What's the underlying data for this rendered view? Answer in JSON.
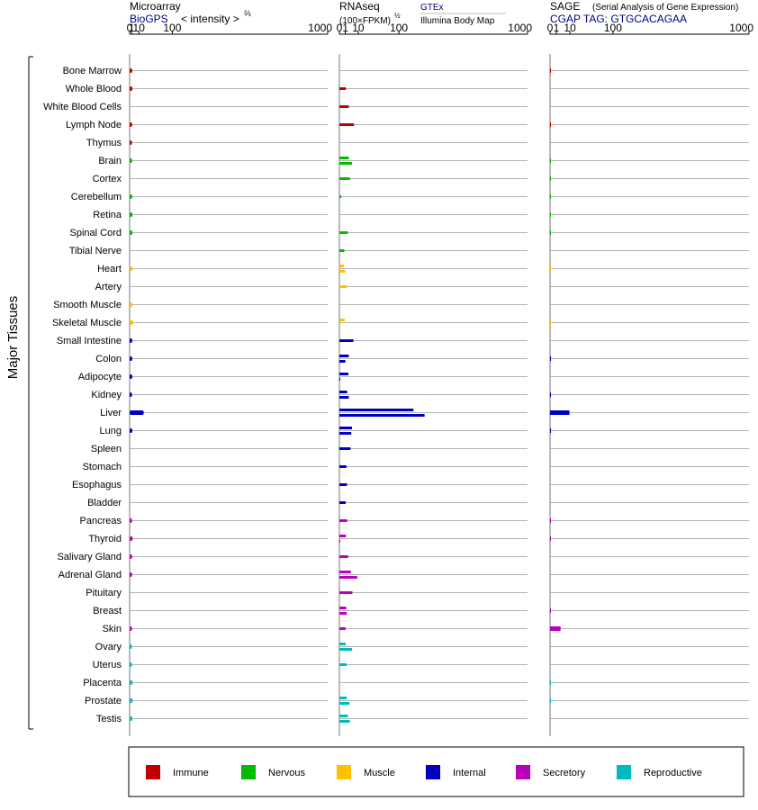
{
  "chart_data": {
    "type": "bar",
    "side_label": "Major Tissues",
    "panels": [
      {
        "key": "microarray",
        "title": "Microarray",
        "source": "BioGPS",
        "unit_text": "< intensity >",
        "unit_exp": "⅔",
        "scale": "power-2/3",
        "ticks": [
          "0",
          "1",
          "10",
          "100",
          "1000"
        ]
      },
      {
        "key": "rnaseq",
        "title": "RNAseq",
        "unit_text": "(100×FPKM)",
        "unit_exp": "½",
        "source_top": "GTEx",
        "source_bottom": "Illumina Body Map",
        "scale": "power-1/2",
        "ticks": [
          "0",
          "1",
          "10",
          "100",
          "1000"
        ]
      },
      {
        "key": "sage",
        "title": "SAGE",
        "subtitle": "(Serial Analysis of Gene Expression)",
        "source": "CGAP TAG: GTGCACAGAA",
        "scale": "power-1/2",
        "ticks": [
          "0",
          "1",
          "10",
          "100",
          "1000"
        ]
      }
    ],
    "groups": [
      {
        "name": "Immune",
        "color": "#c00000"
      },
      {
        "name": "Nervous",
        "color": "#00bb00"
      },
      {
        "name": "Muscle",
        "color": "#ffc000"
      },
      {
        "name": "Internal",
        "color": "#0000c0"
      },
      {
        "name": "Secretory",
        "color": "#bb00bb"
      },
      {
        "name": "Reproductive",
        "color": "#00bbbb"
      }
    ],
    "tissues": [
      {
        "name": "Bone Marrow",
        "group": 0,
        "microarray": 1.5,
        "gtex": null,
        "ibm": null,
        "sage": 0.01
      },
      {
        "name": "Whole Blood",
        "group": 0,
        "microarray": 1.6,
        "gtex": 1.2,
        "ibm": null,
        "sage": null
      },
      {
        "name": "White Blood Cells",
        "group": 0,
        "microarray": null,
        "gtex": null,
        "ibm": 2.5,
        "sage": null
      },
      {
        "name": "Lymph Node",
        "group": 0,
        "microarray": 1.4,
        "gtex": null,
        "ibm": 6,
        "sage": 0.01
      },
      {
        "name": "Thymus",
        "group": 0,
        "microarray": 1.3,
        "gtex": null,
        "ibm": null,
        "sage": null
      },
      {
        "name": "Brain",
        "group": 1,
        "microarray": 1.4,
        "gtex": 2.5,
        "ibm": 4.5,
        "sage": 0.01
      },
      {
        "name": "Cortex",
        "group": 1,
        "microarray": null,
        "gtex": 3.2,
        "ibm": null,
        "sage": 0.01
      },
      {
        "name": "Cerebellum",
        "group": 1,
        "microarray": 1.5,
        "gtex": 0.1,
        "ibm": null,
        "sage": 0.01
      },
      {
        "name": "Retina",
        "group": 1,
        "microarray": 1.7,
        "gtex": null,
        "ibm": null,
        "sage": 0.01
      },
      {
        "name": "Spinal Cord",
        "group": 1,
        "microarray": 1.6,
        "gtex": 2.0,
        "ibm": null,
        "sage": 0.01
      },
      {
        "name": "Tibial Nerve",
        "group": 1,
        "microarray": null,
        "gtex": 0.7,
        "ibm": null,
        "sage": null
      },
      {
        "name": "Heart",
        "group": 2,
        "microarray": 1.9,
        "gtex": 0.55,
        "ibm": 1.0,
        "sage": 0.005
      },
      {
        "name": "Artery",
        "group": 2,
        "microarray": null,
        "gtex": 1.6,
        "ibm": null,
        "sage": null
      },
      {
        "name": "Smooth Muscle",
        "group": 2,
        "microarray": 1.6,
        "gtex": null,
        "ibm": null,
        "sage": null
      },
      {
        "name": "Skeletal Muscle",
        "group": 2,
        "microarray": 2.5,
        "gtex": 0.8,
        "ibm": 0.01,
        "sage": 0.005
      },
      {
        "name": "Small Intestine",
        "group": 3,
        "microarray": 1.5,
        "gtex": 5.5,
        "ibm": null,
        "sage": null
      },
      {
        "name": "Colon",
        "group": 3,
        "microarray": 1.5,
        "gtex": 2.5,
        "ibm": 1.0,
        "sage": 0.01
      },
      {
        "name": "Adipocyte",
        "group": 3,
        "microarray": 1.5,
        "gtex": 2.3,
        "ibm": 0.01,
        "sage": null
      },
      {
        "name": "Kidney",
        "group": 3,
        "microarray": 1.3,
        "gtex": 1.7,
        "ibm": 2.5,
        "sage": 0.01
      },
      {
        "name": "Liver",
        "group": 3,
        "microarray": 19,
        "gtex": 155,
        "ibm": 205,
        "sage": 9.5
      },
      {
        "name": "Lung",
        "group": 3,
        "microarray": 1.6,
        "gtex": 4.5,
        "ibm": 4.0,
        "sage": 0.01
      },
      {
        "name": "Spleen",
        "group": 3,
        "microarray": null,
        "gtex": 3.5,
        "ibm": null,
        "sage": null
      },
      {
        "name": "Stomach",
        "group": 3,
        "microarray": null,
        "gtex": 1.4,
        "ibm": null,
        "sage": null
      },
      {
        "name": "Esophagus",
        "group": 3,
        "microarray": null,
        "gtex": 1.6,
        "ibm": null,
        "sage": null
      },
      {
        "name": "Bladder",
        "group": 3,
        "microarray": null,
        "gtex": 1.1,
        "ibm": null,
        "sage": null
      },
      {
        "name": "Pancreas",
        "group": 4,
        "microarray": 1.3,
        "gtex": 1.7,
        "ibm": null,
        "sage": 0.01
      },
      {
        "name": "Thyroid",
        "group": 4,
        "microarray": 1.9,
        "gtex": 1.2,
        "ibm": 0.01,
        "sage": 0.01
      },
      {
        "name": "Salivary Gland",
        "group": 4,
        "microarray": 1.4,
        "gtex": 2.2,
        "ibm": null,
        "sage": null
      },
      {
        "name": "Adrenal Gland",
        "group": 4,
        "microarray": 1.4,
        "gtex": 3.7,
        "ibm": 9.0,
        "sage": null
      },
      {
        "name": "Pituitary",
        "group": 4,
        "microarray": null,
        "gtex": 4.8,
        "ibm": null,
        "sage": null
      },
      {
        "name": "Breast",
        "group": 4,
        "microarray": null,
        "gtex": 1.3,
        "ibm": 1.5,
        "sage": 0.01
      },
      {
        "name": "Skin",
        "group": 4,
        "microarray": 1.3,
        "gtex": 1.1,
        "ibm": null,
        "sage": 2.8
      },
      {
        "name": "Ovary",
        "group": 5,
        "microarray": 1.1,
        "gtex": 1.1,
        "ibm": 4.5,
        "sage": null
      },
      {
        "name": "Uterus",
        "group": 5,
        "microarray": 1.3,
        "gtex": 1.5,
        "ibm": null,
        "sage": null
      },
      {
        "name": "Placenta",
        "group": 5,
        "microarray": 1.7,
        "gtex": null,
        "ibm": null,
        "sage": 0.01
      },
      {
        "name": "Prostate",
        "group": 5,
        "microarray": 1.8,
        "gtex": 1.5,
        "ibm": 2.9,
        "sage": 0.01
      },
      {
        "name": "Testis",
        "group": 5,
        "microarray": 1.6,
        "gtex": 2.0,
        "ibm": 3.1,
        "sage": null
      }
    ]
  }
}
